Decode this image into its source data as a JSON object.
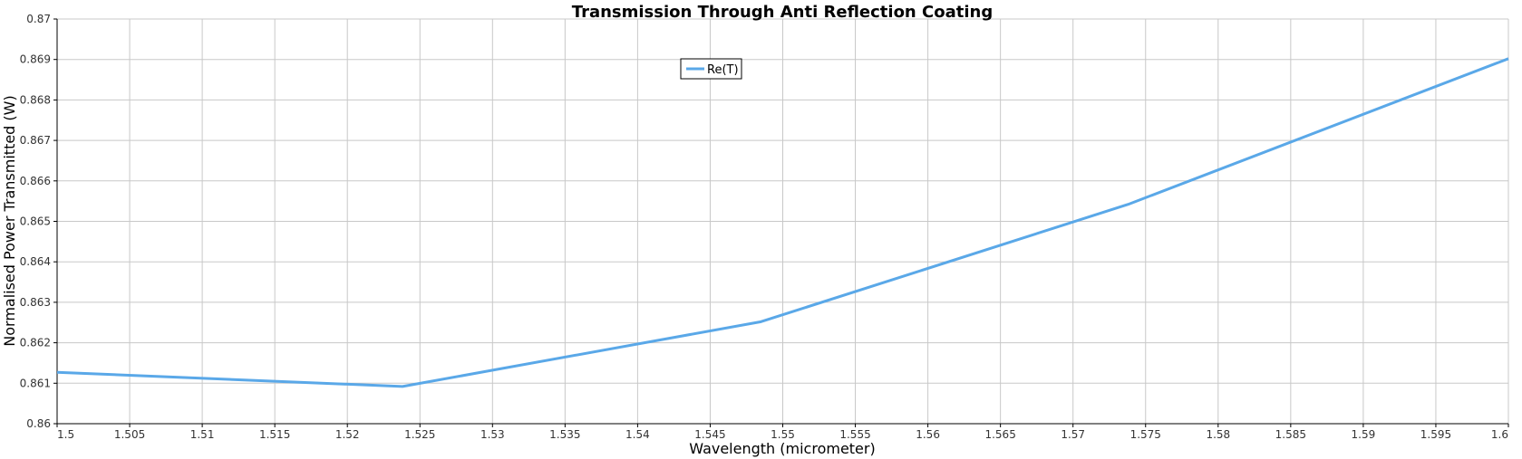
{
  "chart_data": {
    "type": "line",
    "title": "Transmission Through Anti Reflection Coating",
    "xlabel": "Wavelength (micrometer)",
    "ylabel": "Normalised Power Transmitted (W)",
    "xlim": [
      1.5,
      1.6
    ],
    "ylim": [
      0.86,
      0.87
    ],
    "x_ticks": [
      "1.5",
      "1.505",
      "1.51",
      "1.515",
      "1.52",
      "1.525",
      "1.53",
      "1.535",
      "1.54",
      "1.545",
      "1.55",
      "1.555",
      "1.56",
      "1.565",
      "1.57",
      "1.575",
      "1.58",
      "1.585",
      "1.59",
      "1.595",
      "1.6"
    ],
    "y_ticks": [
      "0.86",
      "0.861",
      "0.862",
      "0.863",
      "0.864",
      "0.865",
      "0.866",
      "0.867",
      "0.868",
      "0.869",
      "0.87"
    ],
    "grid": true,
    "legend_position": "top-center",
    "series": [
      {
        "name": "Re(T)",
        "color": "#5aa8e8",
        "x": [
          1.5,
          1.5238,
          1.5485,
          1.5738,
          1.6
        ],
        "y": [
          0.86127,
          0.86092,
          0.86252,
          0.86542,
          0.86902
        ]
      }
    ]
  }
}
